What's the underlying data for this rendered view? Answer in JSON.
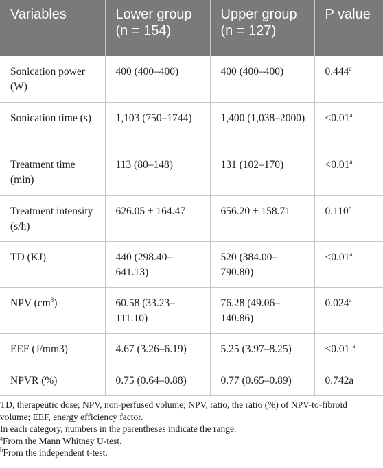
{
  "table": {
    "headers": [
      {
        "line1": "Variables",
        "line2": ""
      },
      {
        "line1": "Lower group",
        "line2": "(n = 154)"
      },
      {
        "line1": "Upper group",
        "line2": "(n = 127)"
      },
      {
        "line1": "P value",
        "line2": ""
      }
    ],
    "rows": [
      {
        "variable": "Sonication power (W)",
        "lower": "400 (400–400)",
        "upper": "400 (400–400)",
        "p": "0.444",
        "p_sup": "a"
      },
      {
        "variable": "Sonication time (s)",
        "lower": "1,103 (750–1744)",
        "upper": "1,400 (1,038–2000)",
        "p": "<0.01",
        "p_sup": "a"
      },
      {
        "variable": "Treatment time (min)",
        "lower": "113 (80–148)",
        "upper": "131 (102–170)",
        "p": "<0.01",
        "p_sup": "a"
      },
      {
        "variable": "Treatment intensity (s/h)",
        "lower": "626.05 ± 164.47",
        "upper": "656.20 ± 158.71",
        "p": "0.110",
        "p_sup": "b"
      },
      {
        "variable": "TD (KJ)",
        "lower": "440 (298.40–641.13)",
        "upper": "520 (384.00–790.80)",
        "p": "<0.01",
        "p_sup": "a"
      },
      {
        "variable_pre": "NPV (cm",
        "variable_sup": "3",
        "variable_post": ")",
        "lower": "60.58 (33.23–111.10)",
        "upper": "76.28 (49.06–140.86)",
        "p": "0.024",
        "p_sup": "a"
      },
      {
        "variable": "EEF (J/mm3)",
        "lower": "4.67 (3.26–6.19)",
        "upper": "5.25 (3.97–8.25)",
        "p": "<0.01 ",
        "p_sup": "a"
      },
      {
        "variable": "NPVR (%)",
        "lower": "0.75 (0.64–0.88)",
        "upper": "0.77 (0.65–0.89)",
        "p": "0.742a",
        "p_sup": ""
      }
    ]
  },
  "footnotes": {
    "abbrev": "TD, therapeutic dose; NPV, non-perfused volume; NPV, ratio, the ratio (%) of NPV-to-fibroid volume; EEF, energy efficiency factor.",
    "range": "In each category, numbers in the parentheses indicate the range.",
    "a_mark": "a",
    "a_text": "From the Mann Whitney U-test.",
    "b_mark": "b",
    "b_text": "From the independent t-test."
  }
}
